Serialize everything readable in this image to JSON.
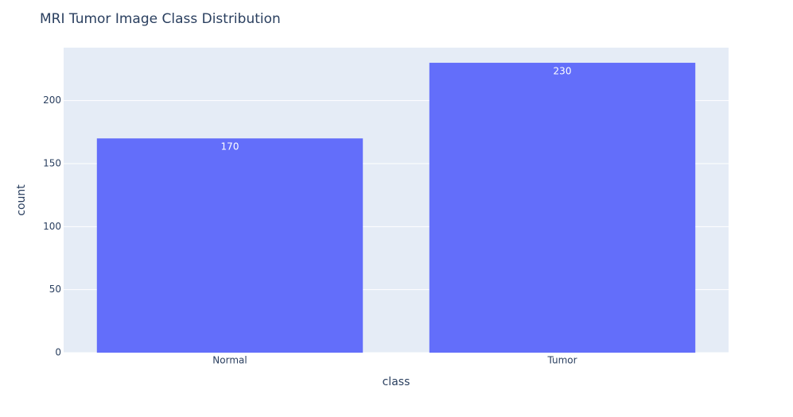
{
  "chart_data": {
    "type": "bar",
    "title": "MRI Tumor Image Class Distribution",
    "x_label": "class",
    "y_label": "count",
    "categories": [
      "Normal",
      "Tumor"
    ],
    "values": [
      170,
      230
    ],
    "color": "#636efa",
    "ylim": [
      0,
      242
    ],
    "yticks": [
      0,
      50,
      100,
      150,
      200
    ],
    "grid": true
  }
}
